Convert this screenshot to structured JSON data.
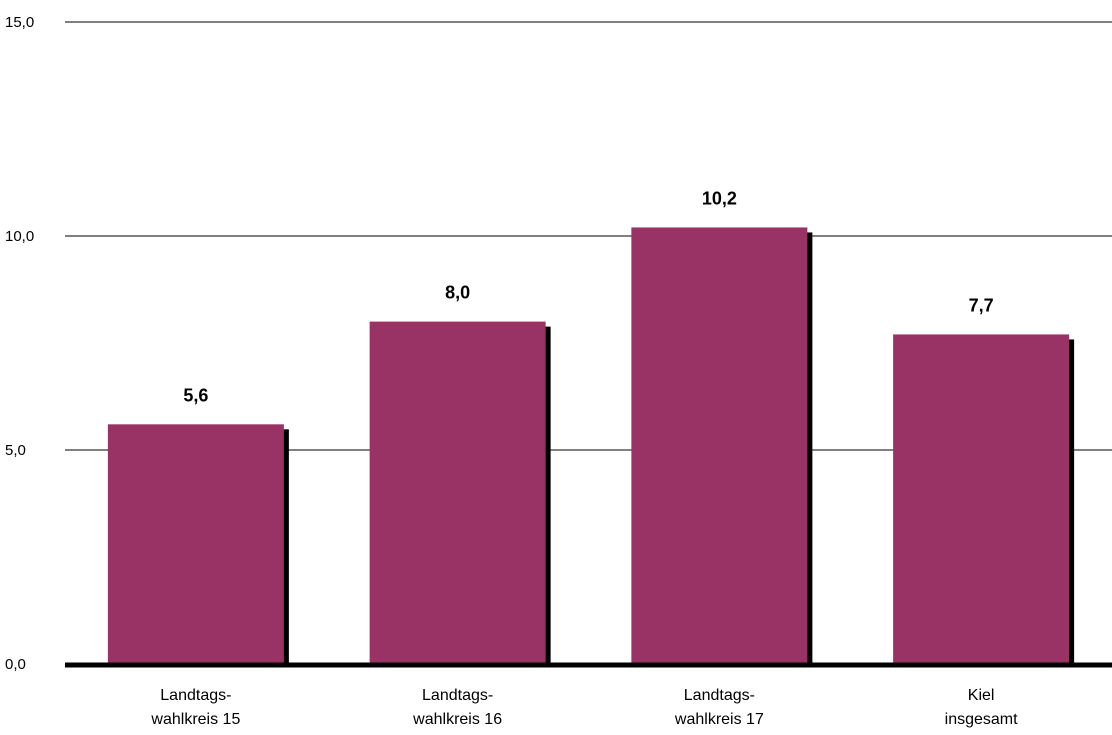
{
  "chart_data": {
    "type": "bar",
    "categories": [
      [
        "Landtags-",
        "wahlkreis 15"
      ],
      [
        "Landtags-",
        "wahlkreis 16"
      ],
      [
        "Landtags-",
        "wahlkreis 17"
      ],
      [
        "Kiel",
        "insgesamt"
      ]
    ],
    "values": [
      5.6,
      8.0,
      10.2,
      7.7
    ],
    "value_labels": [
      "5,6",
      "8,0",
      "10,2",
      "7,7"
    ],
    "ylim": [
      0,
      15
    ],
    "yticks": [
      0,
      5,
      10,
      15
    ],
    "ytick_labels": [
      "0,0",
      "5,0",
      "10,0",
      "15,0"
    ],
    "title": "",
    "xlabel": "",
    "ylabel": "",
    "grid": true,
    "colors": {
      "bar": "#993366",
      "shadow": "#000000",
      "grid": "#000000"
    }
  }
}
